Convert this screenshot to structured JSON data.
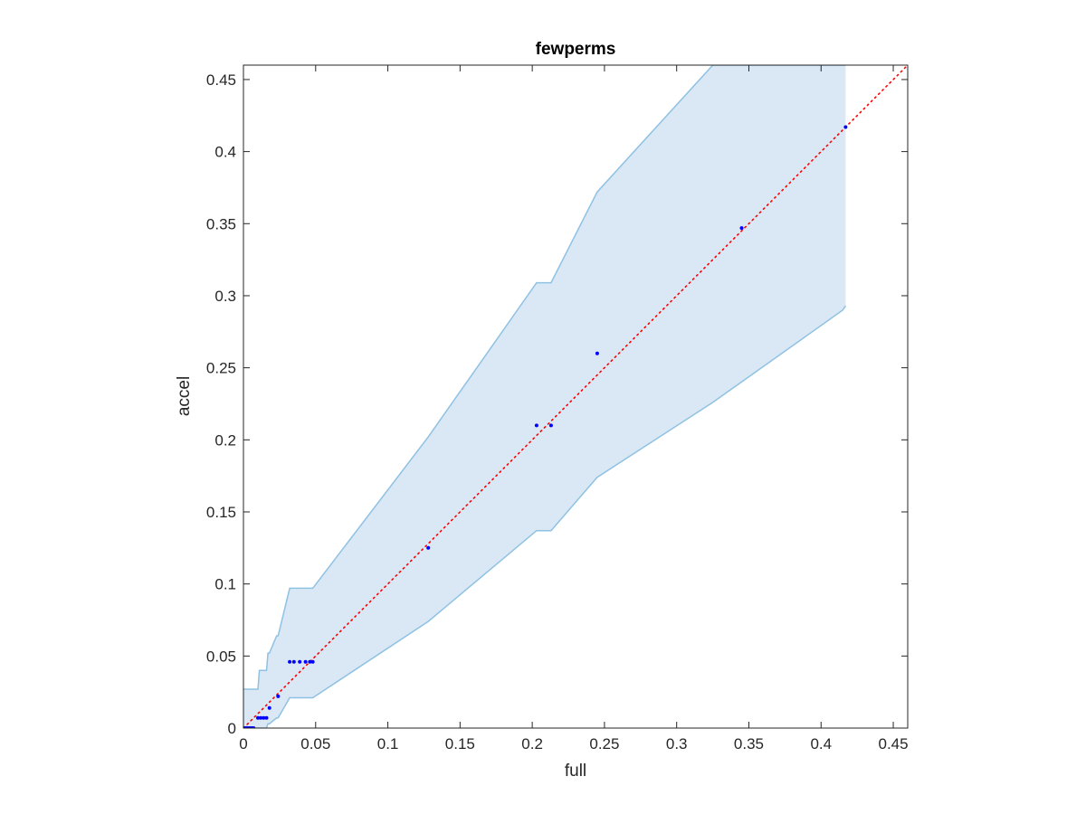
{
  "chart_data": {
    "type": "scatter",
    "title": "fewperms",
    "xlabel": "full",
    "ylabel": "accel",
    "xlim": [
      0,
      0.46
    ],
    "ylim": [
      0,
      0.46
    ],
    "xticks": [
      0,
      0.05,
      0.1,
      0.15,
      0.2,
      0.25,
      0.3,
      0.35,
      0.4,
      0.45
    ],
    "yticks": [
      0,
      0.05,
      0.1,
      0.15,
      0.2,
      0.25,
      0.3,
      0.35,
      0.4,
      0.45
    ],
    "xtick_labels": [
      "0",
      "0.05",
      "0.1",
      "0.15",
      "0.2",
      "0.25",
      "0.3",
      "0.35",
      "0.4",
      "0.45"
    ],
    "ytick_labels": [
      "0",
      "0.05",
      "0.1",
      "0.15",
      "0.2",
      "0.25",
      "0.3",
      "0.35",
      "0.4",
      "0.45"
    ],
    "grid": false,
    "points": {
      "x": [
        0,
        0.001,
        0.002,
        0.003,
        0.004,
        0.005,
        0.006,
        0.007,
        0.01,
        0.012,
        0.014,
        0.016,
        0.018,
        0.024,
        0.032,
        0.035,
        0.039,
        0.043,
        0.046,
        0.048,
        0.128,
        0.203,
        0.213,
        0.245,
        0.345,
        0.417
      ],
      "y": [
        0,
        0,
        0,
        0,
        0,
        0,
        0,
        0,
        0.007,
        0.007,
        0.007,
        0.007,
        0.014,
        0.022,
        0.046,
        0.046,
        0.046,
        0.046,
        0.046,
        0.046,
        0.125,
        0.21,
        0.21,
        0.26,
        0.347,
        0.417
      ],
      "color": "#0000ff"
    },
    "band": {
      "x": [
        0,
        0.006,
        0.007,
        0.01,
        0.011,
        0.016,
        0.017,
        0.018,
        0.023,
        0.024,
        0.032,
        0.047,
        0.048,
        0.128,
        0.203,
        0.213,
        0.245,
        0.325,
        0.415,
        0.417
      ],
      "upper": [
        0.027,
        0.027,
        0.027,
        0.027,
        0.04,
        0.04,
        0.052,
        0.052,
        0.064,
        0.064,
        0.097,
        0.097,
        0.097,
        0.202,
        0.309,
        0.309,
        0.372,
        0.46,
        0.46,
        0.46
      ],
      "lower": [
        0,
        0,
        0,
        0,
        0,
        0,
        0.003,
        0.003,
        0.007,
        0.007,
        0.021,
        0.021,
        0.021,
        0.074,
        0.137,
        0.137,
        0.174,
        0.226,
        0.29,
        0.293
      ],
      "fill_color": "#d9e8f4",
      "line_color": "#8fc1e3"
    },
    "reference_line": {
      "x": [
        0,
        0.46
      ],
      "y": [
        0,
        0.46
      ],
      "color": "#ff0000",
      "style": "dotted"
    }
  }
}
